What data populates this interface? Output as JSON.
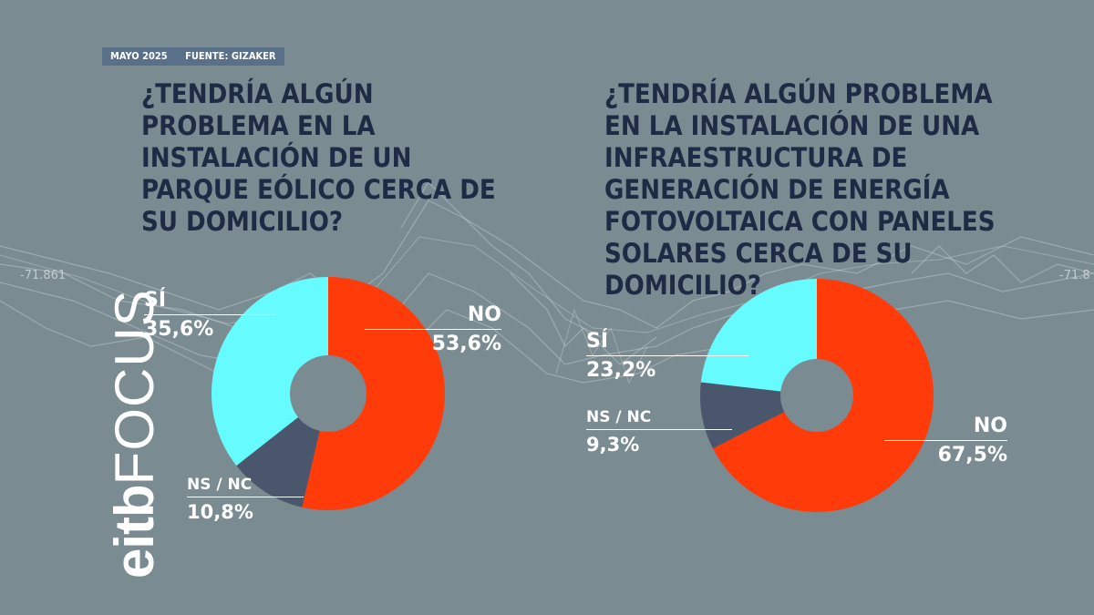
{
  "header": {
    "date": "MAYO 2025",
    "source": "FUENTE: GIZAKER"
  },
  "logo": {
    "bold": "eitb",
    "light": "FOCUS"
  },
  "background": {
    "readout_left": "-71.861",
    "readout_right": "-71.8"
  },
  "colors": {
    "si": "#66fcff",
    "no": "#ff3b0a",
    "nsnc": "#4a566b",
    "hole": "#7a8b91",
    "question": "#1f2a44"
  },
  "chart_data": [
    {
      "type": "pie",
      "title": "¿TENDRÍA ALGÚN PROBLEMA EN LA INSTALACIÓN DE UN PARQUE EÓLICO CERCA DE SU DOMICILIO?",
      "slices": [
        {
          "label": "NO",
          "value": 53.6,
          "display": "53,6%",
          "color": "#ff3b0a"
        },
        {
          "label": "NS / NC",
          "value": 10.8,
          "display": "10,8%",
          "color": "#4a566b"
        },
        {
          "label": "SÍ",
          "value": 35.6,
          "display": "35,6%",
          "color": "#66fcff"
        }
      ]
    },
    {
      "type": "pie",
      "title": "¿TENDRÍA ALGÚN PROBLEMA EN LA INSTALACIÓN DE UNA INFRAESTRUCTURA DE GENERACIÓN DE ENERGÍA FOTOVOLTAICA CON PANELES SOLARES CERCA DE SU DOMICILIO?",
      "slices": [
        {
          "label": "NO",
          "value": 67.5,
          "display": "67,5%",
          "color": "#ff3b0a"
        },
        {
          "label": "NS / NC",
          "value": 9.3,
          "display": "9,3%",
          "color": "#4a566b"
        },
        {
          "label": "SÍ",
          "value": 23.2,
          "display": "23,2%",
          "color": "#66fcff"
        }
      ]
    }
  ]
}
